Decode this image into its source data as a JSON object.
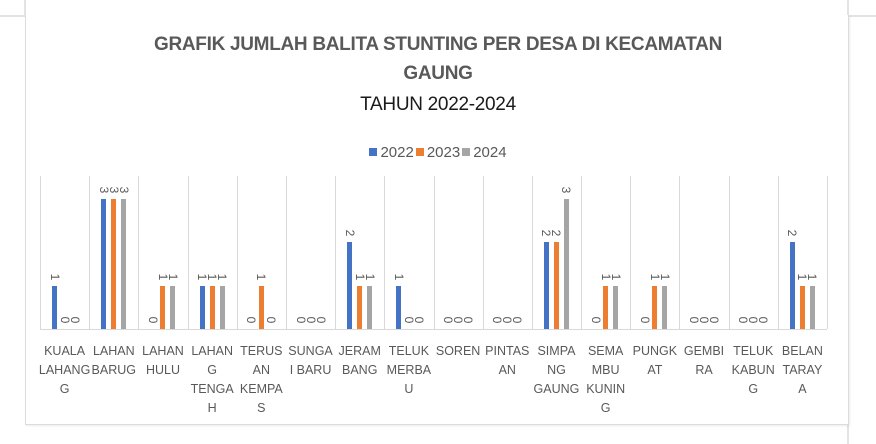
{
  "chart_data": {
    "type": "bar",
    "title": "GRAFIK JUMLAH BALITA STUNTING PER DESA DI KECAMATAN GAUNG",
    "title_line1": "GRAFIK JUMLAH BALITA STUNTING PER DESA DI KECAMATAN",
    "title_line2": "GAUNG",
    "subtitle": "TAHUN 2022-2024",
    "xlabel": "",
    "ylabel": "",
    "ylim": [
      0,
      3.5
    ],
    "grid": "vertical category separators",
    "legend_position": "top",
    "categories": [
      "KUALA LAHANG",
      "LAHAN BARUG",
      "LAHAN HULU",
      "LAHAN TENGAH",
      "TERUSAN KEMPAS",
      "SUNGAI BARU",
      "JERAMBANG",
      "TELUK MERBAU",
      "SOREN",
      "PINTASAN",
      "SIMPANG GAUNG",
      "SEMAMBU KUNING",
      "PUNGKAT",
      "GEMBIRA",
      "TELUK KABUNG",
      "BELANTARAYA"
    ],
    "category_display": [
      [
        "KUALA",
        "LAHANG",
        "G"
      ],
      [
        "LAHAN",
        "BARUG"
      ],
      [
        "LAHAN",
        "HULU"
      ],
      [
        "LAHAN",
        "G",
        "TENGA",
        "H"
      ],
      [
        "TERUS",
        "AN",
        "KEMPA",
        "S"
      ],
      [
        "SUNGA",
        "I BARU"
      ],
      [
        "JERAM",
        "BANG"
      ],
      [
        "TELUK",
        "MERBA",
        "U"
      ],
      [
        "SOREN"
      ],
      [
        "PINTAS",
        "AN"
      ],
      [
        "SIMPA",
        "NG",
        "GAUNG"
      ],
      [
        "SEMA",
        "MBU",
        "KUNIN",
        "G"
      ],
      [
        "PUNGK",
        "AT"
      ],
      [
        "GEMBI",
        "RA"
      ],
      [
        "TELUK",
        "KABUN",
        "G"
      ],
      [
        "BELAN",
        "TARAY",
        "A"
      ]
    ],
    "series": [
      {
        "name": "2022",
        "color": "#4472C4",
        "values": [
          1,
          3,
          0,
          1,
          0,
          0,
          2,
          1,
          0,
          0,
          2,
          0,
          0,
          0,
          0,
          2
        ]
      },
      {
        "name": "2023",
        "color": "#ED7D31",
        "values": [
          0,
          3,
          1,
          1,
          1,
          0,
          1,
          0,
          0,
          0,
          2,
          1,
          1,
          0,
          0,
          1
        ]
      },
      {
        "name": "2024",
        "color": "#A5A5A5",
        "values": [
          0,
          3,
          1,
          1,
          0,
          0,
          1,
          0,
          0,
          0,
          3,
          1,
          1,
          0,
          0,
          1
        ]
      }
    ]
  }
}
